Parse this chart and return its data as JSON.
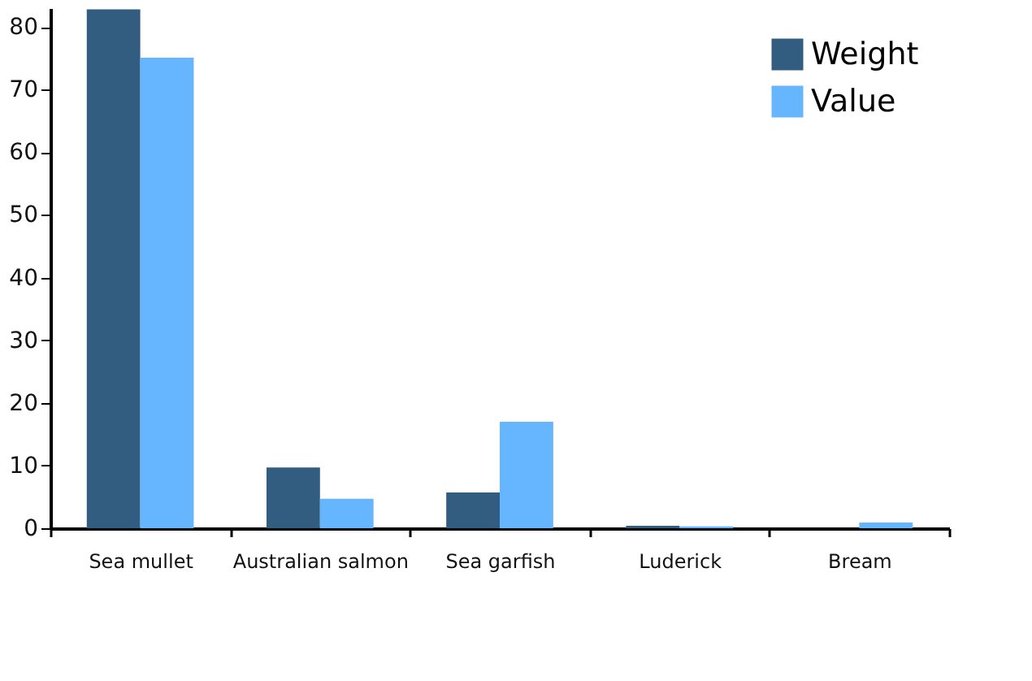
{
  "chart_data": {
    "type": "bar",
    "categories": [
      "Sea mullet",
      "Australian salmon",
      "Sea garfish",
      "Luderick",
      "Bream"
    ],
    "series": [
      {
        "name": "Weight",
        "color": "#325d80",
        "values": [
          82.8,
          9.7,
          5.7,
          0.4,
          0
        ]
      },
      {
        "name": "Value",
        "color": "#65b5ff",
        "values": [
          75.1,
          4.7,
          17.0,
          0.3,
          0.9
        ]
      }
    ],
    "ylim": [
      0,
      83
    ],
    "yticks": [
      0,
      10,
      20,
      30,
      40,
      50,
      60,
      70,
      80
    ],
    "grid": false,
    "legend": "top right"
  }
}
